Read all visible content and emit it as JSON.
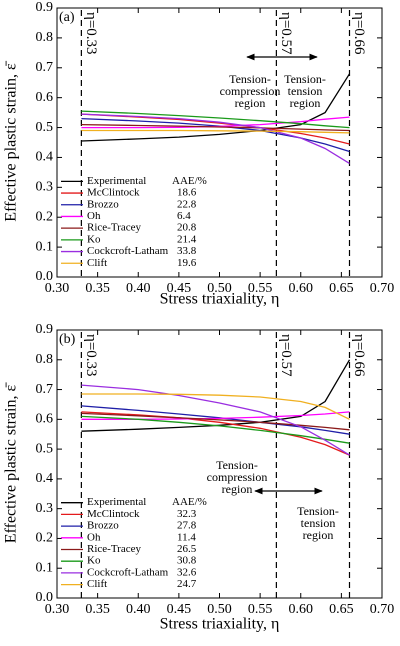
{
  "chart_data": [
    {
      "type": "line",
      "panel_label": "(a)",
      "xlabel": "Stress triaxiality, η",
      "ylabel": "Effective plastic strain, ε̄",
      "x": [
        0.33,
        0.4,
        0.45,
        0.5,
        0.55,
        0.6,
        0.63,
        0.66
      ],
      "xlim": [
        0.3,
        0.7
      ],
      "ylim": [
        0,
        0.9
      ],
      "xticks": [
        {
          "value": 0.3,
          "label": "0.30"
        },
        0.35,
        {
          "value": 0.4,
          "label": "0.40"
        },
        0.45,
        {
          "value": 0.5,
          "label": "0.50"
        },
        0.55,
        {
          "value": 0.6,
          "label": "0.60"
        },
        0.65,
        {
          "value": 0.7,
          "label": "0.70"
        }
      ],
      "yticks": [
        {
          "value": 0,
          "label": "0.0"
        },
        0.1,
        0.2,
        0.3,
        0.4,
        0.5,
        0.6,
        0.7,
        0.8,
        0.9
      ],
      "vlines": [
        {
          "x": 0.33,
          "label": "η=0.33"
        },
        {
          "x": 0.57,
          "label": "η=0.57"
        },
        {
          "x": 0.66,
          "label": "η=0.66"
        }
      ],
      "regions": [
        {
          "text": [
            "Tension-",
            "compression",
            "region"
          ]
        },
        {
          "text": [
            "Tension-",
            "tension",
            "region"
          ]
        }
      ],
      "legend_header": "AAE/%",
      "series": [
        {
          "name": "Experimental",
          "color": "#000000",
          "values": [
            0.455,
            0.462,
            0.468,
            0.477,
            0.49,
            0.51,
            0.55,
            0.68
          ]
        },
        {
          "name": "McClintock",
          "color": "#e41a1c",
          "aae": 18.6,
          "values": [
            0.545,
            0.535,
            0.527,
            0.515,
            0.5,
            0.48,
            0.465,
            0.445
          ]
        },
        {
          "name": "Brozzo",
          "color": "#1f1fa8",
          "aae": 22.8,
          "values": [
            0.53,
            0.522,
            0.515,
            0.505,
            0.49,
            0.465,
            0.445,
            0.42
          ]
        },
        {
          "name": "Oh",
          "color": "#ff00ff",
          "aae": 6.4,
          "values": [
            0.5,
            0.5,
            0.501,
            0.504,
            0.51,
            0.52,
            0.528,
            0.535
          ]
        },
        {
          "name": "Rice-Tracey",
          "color": "#8b1a1a",
          "aae": 20.8,
          "values": [
            0.51,
            0.507,
            0.505,
            0.502,
            0.499,
            0.495,
            0.492,
            0.49
          ]
        },
        {
          "name": "Ko",
          "color": "#1a9a1a",
          "aae": 21.4,
          "values": [
            0.555,
            0.547,
            0.54,
            0.532,
            0.523,
            0.513,
            0.506,
            0.5
          ]
        },
        {
          "name": "Cockcroft-Latham",
          "color": "#9a2ee0",
          "aae": 33.8,
          "values": [
            0.545,
            0.537,
            0.53,
            0.518,
            0.5,
            0.465,
            0.43,
            0.38
          ]
        },
        {
          "name": "Clift",
          "color": "#f0b020",
          "aae": 19.6,
          "values": [
            0.49,
            0.49,
            0.49,
            0.489,
            0.488,
            0.486,
            0.484,
            0.482
          ]
        }
      ]
    },
    {
      "type": "line",
      "panel_label": "(b)",
      "xlabel": "Stress triaxiality, η",
      "ylabel": "Effective plastic strain, ε̄",
      "x": [
        0.33,
        0.4,
        0.45,
        0.5,
        0.55,
        0.6,
        0.63,
        0.66
      ],
      "xlim": [
        0.3,
        0.7
      ],
      "ylim": [
        0,
        0.9
      ],
      "xticks": [
        {
          "value": 0.3,
          "label": "0.30"
        },
        0.35,
        {
          "value": 0.4,
          "label": "0.40"
        },
        0.45,
        {
          "value": 0.5,
          "label": "0.50"
        },
        0.55,
        {
          "value": 0.6,
          "label": "0.60"
        },
        0.65,
        {
          "value": 0.7,
          "label": "0.70"
        }
      ],
      "yticks": [
        {
          "value": 0,
          "label": "0.0"
        },
        0.1,
        0.2,
        0.3,
        0.4,
        0.5,
        0.6,
        0.7,
        0.8,
        0.9
      ],
      "vlines": [
        {
          "x": 0.33,
          "label": "η=0.33"
        },
        {
          "x": 0.57,
          "label": "η=0.57"
        },
        {
          "x": 0.66,
          "label": "η=0.66"
        }
      ],
      "regions": [
        {
          "text": [
            "Tension-",
            "compression",
            "region"
          ]
        },
        {
          "text": [
            "Tension-",
            "tension",
            "region"
          ]
        }
      ],
      "legend_header": "AAE/%",
      "series": [
        {
          "name": "Experimental",
          "color": "#000000",
          "values": [
            0.56,
            0.567,
            0.573,
            0.58,
            0.59,
            0.61,
            0.66,
            0.8
          ]
        },
        {
          "name": "McClintock",
          "color": "#e41a1c",
          "aae": 32.3,
          "values": [
            0.625,
            0.615,
            0.605,
            0.59,
            0.57,
            0.54,
            0.515,
            0.48
          ]
        },
        {
          "name": "Brozzo",
          "color": "#1f1fa8",
          "aae": 27.8,
          "values": [
            0.645,
            0.63,
            0.618,
            0.605,
            0.59,
            0.575,
            0.563,
            0.55
          ]
        },
        {
          "name": "Oh",
          "color": "#ff00ff",
          "aae": 11.4,
          "values": [
            0.6,
            0.6,
            0.601,
            0.603,
            0.607,
            0.613,
            0.618,
            0.625
          ]
        },
        {
          "name": "Rice-Tracey",
          "color": "#8b1a1a",
          "aae": 26.5,
          "values": [
            0.62,
            0.612,
            0.605,
            0.598,
            0.59,
            0.58,
            0.573,
            0.565
          ]
        },
        {
          "name": "Ko",
          "color": "#1a9a1a",
          "aae": 30.8,
          "values": [
            0.61,
            0.6,
            0.59,
            0.578,
            0.563,
            0.545,
            0.533,
            0.52
          ]
        },
        {
          "name": "Cockcroft-Latham",
          "color": "#9a2ee0",
          "aae": 32.6,
          "values": [
            0.715,
            0.7,
            0.68,
            0.655,
            0.625,
            0.575,
            0.53,
            0.48
          ]
        },
        {
          "name": "Clift",
          "color": "#f0b020",
          "aae": 24.7,
          "values": [
            0.685,
            0.685,
            0.684,
            0.681,
            0.675,
            0.66,
            0.64,
            0.6
          ]
        }
      ]
    }
  ]
}
